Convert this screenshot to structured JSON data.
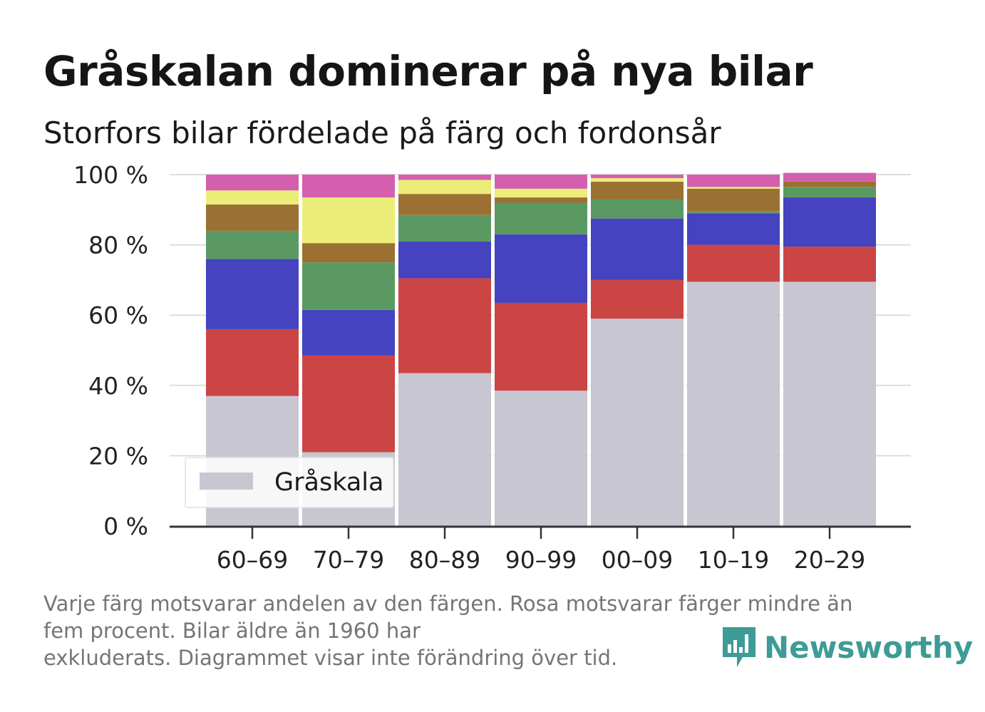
{
  "header": {
    "title": "Gråskalan dominerar på nya bilar",
    "subtitle": "Storfors bilar fördelade på färg och fordonsår"
  },
  "footnote": {
    "line1": "Varje färg motsvarar andelen av den färgen. Rosa motsvarar färger mindre än",
    "line2": "fem procent. Bilar äldre än 1960 har",
    "line3": "exkluderats. Diagrammet visar inte förändring över tid."
  },
  "brand": {
    "name": "Newsworthy",
    "icon": "bar-chart-speech-bubble-icon",
    "color": "#3e9b95"
  },
  "chart_data": {
    "type": "bar",
    "stacked": true,
    "categories": [
      "60–69",
      "70–79",
      "80–89",
      "90–99",
      "00–09",
      "10–19",
      "20–29"
    ],
    "series": [
      {
        "name": "Gråskala",
        "color": "#c8c6d1",
        "values": [
          37,
          21,
          43.5,
          38.5,
          59,
          69.5,
          69.5
        ]
      },
      {
        "color": "#cc4545",
        "values": [
          19,
          27.5,
          27,
          25,
          11,
          10.5,
          10
        ]
      },
      {
        "color": "#4543bf",
        "values": [
          20,
          13,
          10.5,
          19.5,
          17.5,
          9,
          14
        ]
      },
      {
        "color": "#5a9a62",
        "values": [
          8,
          13.5,
          7.5,
          9,
          5.5,
          0.5,
          3
        ]
      },
      {
        "color": "#9b7133",
        "values": [
          7.5,
          5.5,
          6,
          1.5,
          5,
          6.5,
          1.5
        ]
      },
      {
        "color": "#eced78",
        "values": [
          4,
          13,
          4,
          2.5,
          1,
          0.5,
          0
        ]
      },
      {
        "color": "#d45fae",
        "values": [
          4.5,
          6.5,
          1.5,
          4,
          1,
          3.5,
          2.5
        ]
      }
    ],
    "y_ticks": [
      "0 %",
      "20 %",
      "40 %",
      "60 %",
      "80 %",
      "100 %"
    ],
    "ylim": [
      0,
      100
    ],
    "grid": true,
    "legend": {
      "position": "bottom-left",
      "entries": [
        "Gråskala"
      ]
    }
  }
}
